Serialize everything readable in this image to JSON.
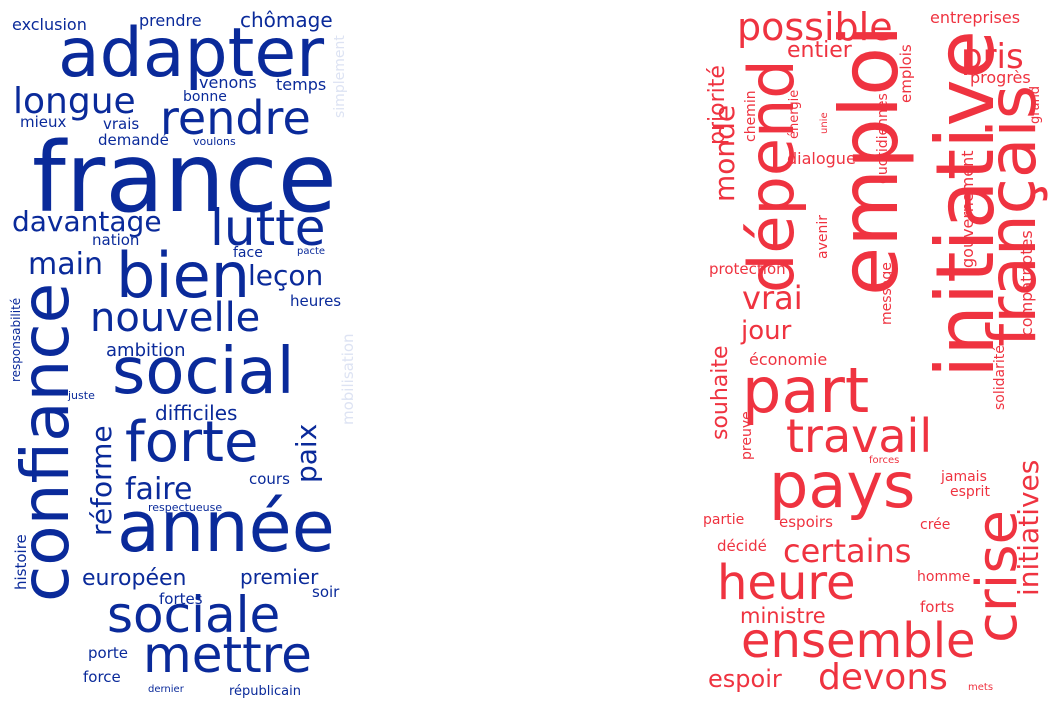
{
  "colors": {
    "blue": "#0a2a9a",
    "blue_faint": "#dde3f3",
    "red": "#ef3340"
  },
  "left_cloud": [
    {
      "text": "exclusion",
      "color": "blue"
    },
    {
      "text": "prendre",
      "color": "blue"
    },
    {
      "text": "chômage",
      "color": "blue"
    },
    {
      "text": "adapter",
      "color": "blue"
    },
    {
      "text": "simplement",
      "color": "blue_faint"
    },
    {
      "text": "longue",
      "color": "blue"
    },
    {
      "text": "venons",
      "color": "blue"
    },
    {
      "text": "temps",
      "color": "blue"
    },
    {
      "text": "bonne",
      "color": "blue"
    },
    {
      "text": "rendre",
      "color": "blue"
    },
    {
      "text": "mieux",
      "color": "blue"
    },
    {
      "text": "vrais",
      "color": "blue"
    },
    {
      "text": "demandé",
      "color": "blue"
    },
    {
      "text": "voulons",
      "color": "blue"
    },
    {
      "text": "france",
      "color": "blue"
    },
    {
      "text": "davantage",
      "color": "blue"
    },
    {
      "text": "lutte",
      "color": "blue"
    },
    {
      "text": "nation",
      "color": "blue"
    },
    {
      "text": "face",
      "color": "blue"
    },
    {
      "text": "pacte",
      "color": "blue"
    },
    {
      "text": "main",
      "color": "blue"
    },
    {
      "text": "bien",
      "color": "blue"
    },
    {
      "text": "leçon",
      "color": "blue"
    },
    {
      "text": "heures",
      "color": "blue"
    },
    {
      "text": "nouvelle",
      "color": "blue"
    },
    {
      "text": "responsabilité",
      "color": "blue"
    },
    {
      "text": "ambition",
      "color": "blue"
    },
    {
      "text": "mobilisation",
      "color": "blue_faint"
    },
    {
      "text": "confiance",
      "color": "blue"
    },
    {
      "text": "social",
      "color": "blue"
    },
    {
      "text": "juste",
      "color": "blue"
    },
    {
      "text": "difficiles",
      "color": "blue"
    },
    {
      "text": "paix",
      "color": "blue"
    },
    {
      "text": "réforme",
      "color": "blue"
    },
    {
      "text": "forte",
      "color": "blue"
    },
    {
      "text": "faire",
      "color": "blue"
    },
    {
      "text": "cours",
      "color": "blue"
    },
    {
      "text": "respectueuse",
      "color": "blue"
    },
    {
      "text": "année",
      "color": "blue"
    },
    {
      "text": "histoire",
      "color": "blue"
    },
    {
      "text": "européen",
      "color": "blue"
    },
    {
      "text": "premier",
      "color": "blue"
    },
    {
      "text": "soir",
      "color": "blue"
    },
    {
      "text": "fortes",
      "color": "blue"
    },
    {
      "text": "sociale",
      "color": "blue"
    },
    {
      "text": "porte",
      "color": "blue"
    },
    {
      "text": "mettre",
      "color": "blue"
    },
    {
      "text": "force",
      "color": "blue"
    },
    {
      "text": "dernier",
      "color": "blue"
    },
    {
      "text": "républicain",
      "color": "blue"
    }
  ],
  "right_cloud": [
    {
      "text": "priorité",
      "color": "red"
    },
    {
      "text": "possible",
      "color": "red"
    },
    {
      "text": "entreprises",
      "color": "red"
    },
    {
      "text": "chemin",
      "color": "red"
    },
    {
      "text": "entier",
      "color": "red"
    },
    {
      "text": "pris",
      "color": "red"
    },
    {
      "text": "initiative",
      "color": "red"
    },
    {
      "text": "progrès",
      "color": "red"
    },
    {
      "text": "énergie",
      "color": "red"
    },
    {
      "text": "emplois",
      "color": "red"
    },
    {
      "text": "grand",
      "color": "red"
    },
    {
      "text": "unie",
      "color": "red"
    },
    {
      "text": "monde",
      "color": "red"
    },
    {
      "text": "dépend",
      "color": "red"
    },
    {
      "text": "emploi",
      "color": "red"
    },
    {
      "text": "dialogue",
      "color": "red"
    },
    {
      "text": "quotidiennes",
      "color": "red"
    },
    {
      "text": "français",
      "color": "red"
    },
    {
      "text": "gouvernement",
      "color": "red"
    },
    {
      "text": "protection",
      "color": "red"
    },
    {
      "text": "avenir",
      "color": "red"
    },
    {
      "text": "vrai",
      "color": "red"
    },
    {
      "text": "message",
      "color": "red"
    },
    {
      "text": "jour",
      "color": "red"
    },
    {
      "text": "compatriotes",
      "color": "red"
    },
    {
      "text": "économie",
      "color": "red"
    },
    {
      "text": "part",
      "color": "red"
    },
    {
      "text": "souhaite",
      "color": "red"
    },
    {
      "text": "solidarité",
      "color": "red"
    },
    {
      "text": "travail",
      "color": "red"
    },
    {
      "text": "preuve",
      "color": "red"
    },
    {
      "text": "forces",
      "color": "red"
    },
    {
      "text": "jamais",
      "color": "red"
    },
    {
      "text": "pays",
      "color": "red"
    },
    {
      "text": "esprit",
      "color": "red"
    },
    {
      "text": "partie",
      "color": "red"
    },
    {
      "text": "espoirs",
      "color": "red"
    },
    {
      "text": "crée",
      "color": "red"
    },
    {
      "text": "initiatives",
      "color": "red"
    },
    {
      "text": "décidé",
      "color": "red"
    },
    {
      "text": "certains",
      "color": "red"
    },
    {
      "text": "crise",
      "color": "red"
    },
    {
      "text": "heure",
      "color": "red"
    },
    {
      "text": "homme",
      "color": "red"
    },
    {
      "text": "ministre",
      "color": "red"
    },
    {
      "text": "forts",
      "color": "red"
    },
    {
      "text": "ensemble",
      "color": "red"
    },
    {
      "text": "espoir",
      "color": "red"
    },
    {
      "text": "devons",
      "color": "red"
    },
    {
      "text": "mets",
      "color": "red"
    }
  ]
}
